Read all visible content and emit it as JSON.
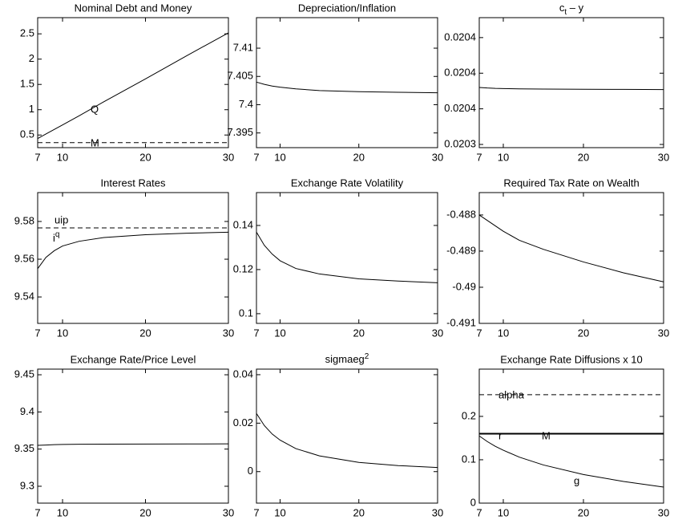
{
  "chart_data": [
    {
      "type": "line",
      "title": "Nominal Debt and Money",
      "xlim": [
        7,
        30
      ],
      "xticks": [
        7,
        10,
        20,
        30
      ],
      "ylim": [
        0.25,
        2.82
      ],
      "yticks": [
        0.5,
        1,
        1.5,
        2,
        2.5
      ],
      "x": [
        7,
        8,
        9,
        10,
        12,
        15,
        20,
        25,
        30
      ],
      "series": [
        {
          "color": "#000000",
          "style": "solid",
          "values": [
            0.43,
            0.52,
            0.61,
            0.7,
            0.88,
            1.16,
            1.61,
            2.07,
            2.52
          ]
        },
        {
          "color": "#000000",
          "style": "dashed",
          "values": [
            0.35,
            0.35,
            0.35,
            0.35,
            0.35,
            0.35,
            0.35,
            0.35,
            0.35
          ]
        }
      ],
      "annotations": [
        {
          "text": "Q"
        },
        {
          "text": "M"
        }
      ]
    },
    {
      "type": "line",
      "title": "Depreciation/Inflation",
      "xlim": [
        7,
        30
      ],
      "xticks": [
        7,
        10,
        20,
        30
      ],
      "ylim": [
        7.3924,
        7.4154
      ],
      "yticks": [
        7.395,
        7.4,
        7.405,
        7.41
      ],
      "x": [
        7,
        8,
        9,
        10,
        12,
        15,
        20,
        25,
        30
      ],
      "series": [
        {
          "color": "#000000",
          "style": "solid",
          "values": [
            7.404,
            7.4036,
            7.4033,
            7.4031,
            7.4028,
            7.4025,
            7.4023,
            7.4022,
            7.4021
          ]
        }
      ]
    },
    {
      "type": "line",
      "title": [
        "c",
        "t",
        " – y"
      ],
      "title_script": "sub",
      "xlim": [
        7,
        30
      ],
      "xticks": [
        7,
        10,
        20,
        30
      ],
      "ylim": [
        0.0203382,
        0.0204112
      ],
      "yticks": [
        {
          "value": 0.02034,
          "label": "0.0203"
        },
        {
          "value": 0.02036,
          "label": "0.0204"
        },
        {
          "value": 0.02038,
          "label": "0.0204"
        },
        {
          "value": 0.0204,
          "label": "0.0204"
        }
      ],
      "x": [
        7,
        8,
        9,
        10,
        12,
        15,
        20,
        25,
        30
      ],
      "series": [
        {
          "color": "#000000",
          "style": "solid",
          "values": [
            0.020372,
            0.0203717,
            0.0203715,
            0.0203714,
            0.0203712,
            0.0203711,
            0.020371,
            0.0203709,
            0.0203708
          ]
        }
      ]
    },
    {
      "type": "line",
      "title": "Interest Rates",
      "xlim": [
        7,
        30
      ],
      "xticks": [
        7,
        10,
        20,
        30
      ],
      "ylim": [
        9.526,
        9.5953
      ],
      "yticks": [
        9.54,
        9.56,
        9.58
      ],
      "x": [
        7,
        8,
        9,
        10,
        12,
        15,
        20,
        25,
        30
      ],
      "series": [
        {
          "color": "#000000",
          "style": "dashed",
          "values": [
            9.5766,
            9.5766,
            9.5766,
            9.5766,
            9.5766,
            9.5766,
            9.5766,
            9.5766,
            9.5766
          ]
        },
        {
          "color": "#000000",
          "style": "solid",
          "values": [
            9.555,
            9.561,
            9.5645,
            9.567,
            9.5695,
            9.5715,
            9.573,
            9.5738,
            9.5743
          ]
        }
      ],
      "annotations": [
        {
          "text": "uip"
        },
        {
          "text": [
            "i",
            "q"
          ]
        }
      ]
    },
    {
      "type": "line",
      "title": "Exchange Rate Volatility",
      "xlim": [
        7,
        30
      ],
      "xticks": [
        7,
        10,
        20,
        30
      ],
      "ylim": [
        0.0956,
        0.1549
      ],
      "yticks": [
        0.1,
        0.12,
        0.14
      ],
      "x": [
        7,
        8,
        9,
        10,
        12,
        15,
        20,
        25,
        30
      ],
      "series": [
        {
          "color": "#000000",
          "style": "solid",
          "values": [
            0.137,
            0.131,
            0.127,
            0.124,
            0.1205,
            0.118,
            0.1158,
            0.1148,
            0.114
          ]
        }
      ]
    },
    {
      "type": "line",
      "title": "Required Tax Rate on Wealth",
      "xlim": [
        7,
        30
      ],
      "xticks": [
        7,
        10,
        20,
        30
      ],
      "ylim": [
        -0.491,
        -0.48738
      ],
      "yticks": [
        -0.488,
        -0.489,
        -0.49,
        -0.491
      ],
      "x": [
        7,
        8,
        9,
        10,
        12,
        15,
        20,
        25,
        30
      ],
      "series": [
        {
          "color": "#000000",
          "style": "solid",
          "values": [
            -0.488,
            -0.48815,
            -0.4883,
            -0.48845,
            -0.4887,
            -0.48895,
            -0.4893,
            -0.4896,
            -0.48985
          ]
        }
      ]
    },
    {
      "type": "line",
      "title": "Exchange Rate/Price Level",
      "xlim": [
        7,
        30
      ],
      "xticks": [
        7,
        10,
        20,
        30
      ],
      "ylim": [
        9.2773,
        9.4576
      ],
      "yticks": [
        9.3,
        9.35,
        9.4,
        9.45
      ],
      "x": [
        7,
        8,
        9,
        10,
        12,
        15,
        20,
        25,
        30
      ],
      "series": [
        {
          "color": "#000000",
          "style": "solid",
          "values": [
            9.355,
            9.3555,
            9.356,
            9.3562,
            9.3565,
            9.3567,
            9.3568,
            9.3569,
            9.357
          ]
        }
      ]
    },
    {
      "type": "line",
      "title": [
        "sigmaeg",
        "2"
      ],
      "title_script": "sup",
      "xlim": [
        7,
        30
      ],
      "xticks": [
        7,
        10,
        20,
        30
      ],
      "ylim": [
        -0.013,
        0.0423
      ],
      "yticks": [
        0,
        0.02,
        0.04
      ],
      "x": [
        7,
        8,
        9,
        10,
        12,
        15,
        20,
        25,
        30
      ],
      "series": [
        {
          "color": "#000000",
          "style": "solid",
          "values": [
            0.024,
            0.019,
            0.0155,
            0.013,
            0.0095,
            0.0065,
            0.0038,
            0.0025,
            0.0017
          ]
        }
      ]
    },
    {
      "type": "line",
      "title": "Exchange Rate Diffusions x 10",
      "xlim": [
        7,
        30
      ],
      "xticks": [
        7,
        10,
        20,
        30
      ],
      "ylim": [
        0,
        0.309
      ],
      "yticks": [
        0,
        0.1,
        0.2
      ],
      "x": [
        7,
        8,
        9,
        10,
        12,
        15,
        20,
        25,
        30
      ],
      "series": [
        {
          "color": "#000000",
          "style": "dashed",
          "values": [
            0.25,
            0.25,
            0.25,
            0.25,
            0.25,
            0.25,
            0.25,
            0.25,
            0.25
          ]
        },
        {
          "color": "#000000",
          "style": "solid",
          "values": [
            0.16,
            0.16,
            0.16,
            0.16,
            0.16,
            0.16,
            0.16,
            0.16,
            0.16
          ]
        },
        {
          "color": "#000000",
          "style": "bold",
          "values": [
            0.16,
            0.16,
            0.16,
            0.16,
            0.16,
            0.16,
            0.16,
            0.16,
            0.16
          ]
        },
        {
          "color": "#000000",
          "style": "solid",
          "values": [
            0.155,
            0.142,
            0.131,
            0.122,
            0.106,
            0.088,
            0.066,
            0.05,
            0.037
          ]
        }
      ],
      "annotations": [
        {
          "text": "alpha"
        },
        {
          "text": "r"
        },
        {
          "text": "M"
        },
        {
          "text": "g"
        }
      ]
    }
  ]
}
